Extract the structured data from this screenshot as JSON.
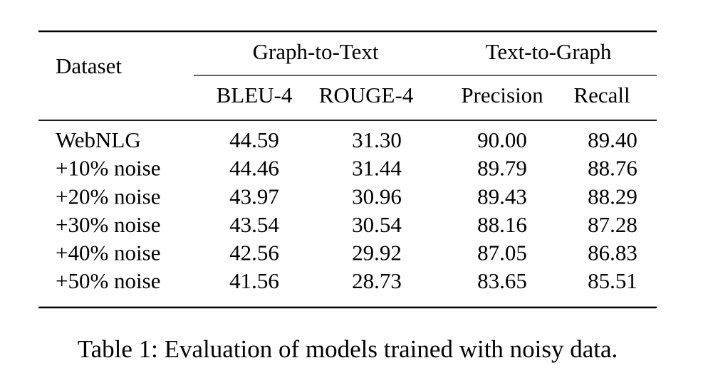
{
  "table": {
    "header": {
      "dataset": "Dataset",
      "groups": [
        "Graph-to-Text",
        "Text-to-Graph"
      ],
      "columns": [
        "BLEU-4",
        "ROUGE-4",
        "Precision",
        "Recall"
      ]
    },
    "rows": [
      [
        "WebNLG",
        "44.59",
        "31.30",
        "90.00",
        "89.40"
      ],
      [
        "+10% noise",
        "44.46",
        "31.44",
        "89.79",
        "88.76"
      ],
      [
        "+20% noise",
        "43.97",
        "30.96",
        "89.43",
        "88.29"
      ],
      [
        "+30% noise",
        "43.54",
        "30.54",
        "88.16",
        "87.28"
      ],
      [
        "+40% noise",
        "42.56",
        "29.92",
        "87.05",
        "86.83"
      ],
      [
        "+50% noise",
        "41.56",
        "28.73",
        "83.65",
        "85.51"
      ]
    ],
    "caption": "Table 1: Evaluation of models trained with noisy data."
  }
}
